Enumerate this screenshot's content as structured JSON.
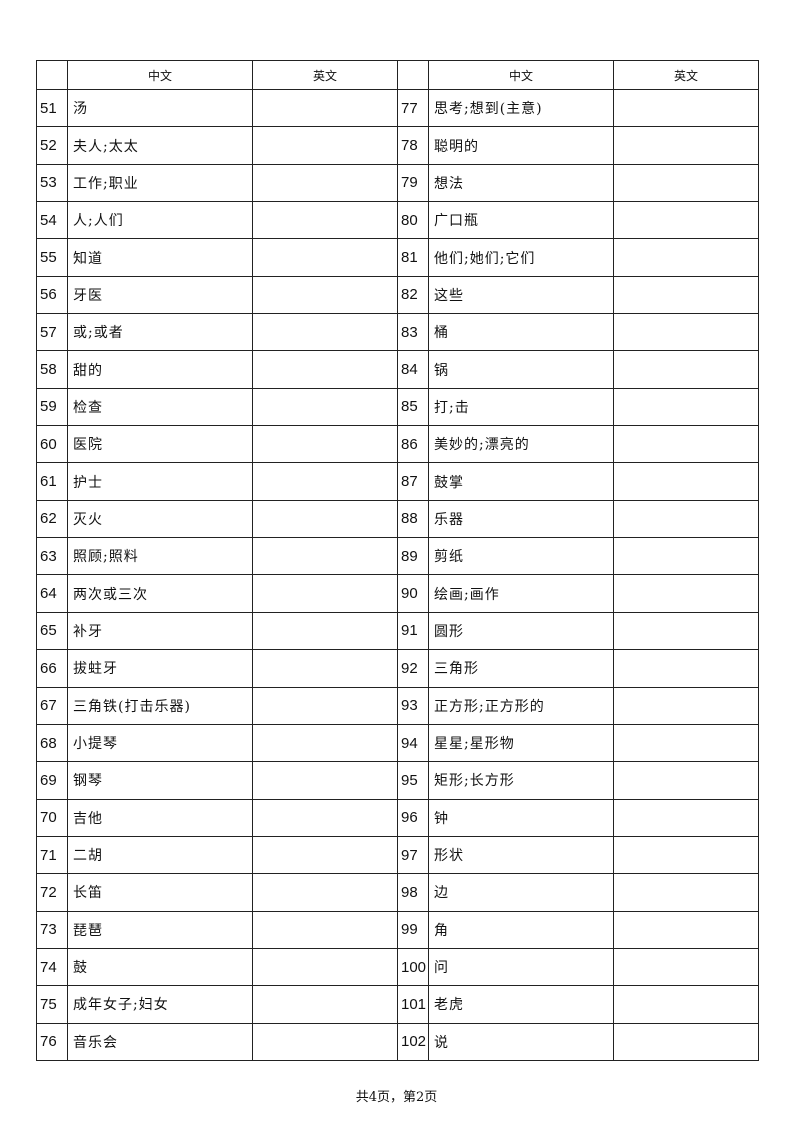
{
  "header": {
    "num": "",
    "zh": "中文",
    "en": "英文"
  },
  "left": [
    {
      "num": "51",
      "zh": "汤",
      "en": ""
    },
    {
      "num": "52",
      "zh": "夫人;太太",
      "en": ""
    },
    {
      "num": "53",
      "zh": "工作;职业",
      "en": ""
    },
    {
      "num": "54",
      "zh": "人;人们",
      "en": ""
    },
    {
      "num": "55",
      "zh": "知道",
      "en": ""
    },
    {
      "num": "56",
      "zh": "牙医",
      "en": ""
    },
    {
      "num": "57",
      "zh": "或;或者",
      "en": ""
    },
    {
      "num": "58",
      "zh": "甜的",
      "en": ""
    },
    {
      "num": "59",
      "zh": "检查",
      "en": ""
    },
    {
      "num": "60",
      "zh": "医院",
      "en": ""
    },
    {
      "num": "61",
      "zh": "护士",
      "en": ""
    },
    {
      "num": "62",
      "zh": "灭火",
      "en": ""
    },
    {
      "num": "63",
      "zh": "照顾;照料",
      "en": ""
    },
    {
      "num": "64",
      "zh": "两次或三次",
      "en": ""
    },
    {
      "num": "65",
      "zh": "补牙",
      "en": ""
    },
    {
      "num": "66",
      "zh": "拔蛀牙",
      "en": ""
    },
    {
      "num": "67",
      "zh": "三角铁(打击乐器)",
      "en": ""
    },
    {
      "num": "68",
      "zh": "小提琴",
      "en": ""
    },
    {
      "num": "69",
      "zh": "钢琴",
      "en": ""
    },
    {
      "num": "70",
      "zh": "吉他",
      "en": ""
    },
    {
      "num": "71",
      "zh": "二胡",
      "en": ""
    },
    {
      "num": "72",
      "zh": "长笛",
      "en": ""
    },
    {
      "num": "73",
      "zh": "琵琶",
      "en": ""
    },
    {
      "num": "74",
      "zh": "鼓",
      "en": ""
    },
    {
      "num": "75",
      "zh": "成年女子;妇女",
      "en": ""
    },
    {
      "num": "76",
      "zh": "音乐会",
      "en": ""
    }
  ],
  "right": [
    {
      "num": "77",
      "zh": "思考;想到(主意)",
      "en": ""
    },
    {
      "num": "78",
      "zh": "聪明的",
      "en": ""
    },
    {
      "num": "79",
      "zh": "想法",
      "en": ""
    },
    {
      "num": "80",
      "zh": "广口瓶",
      "en": ""
    },
    {
      "num": "81",
      "zh": "他们;她们;它们",
      "en": ""
    },
    {
      "num": "82",
      "zh": "这些",
      "en": ""
    },
    {
      "num": "83",
      "zh": "桶",
      "en": ""
    },
    {
      "num": "84",
      "zh": "锅",
      "en": ""
    },
    {
      "num": "85",
      "zh": "打;击",
      "en": ""
    },
    {
      "num": "86",
      "zh": "美妙的;漂亮的",
      "en": ""
    },
    {
      "num": "87",
      "zh": "鼓掌",
      "en": ""
    },
    {
      "num": "88",
      "zh": "乐器",
      "en": ""
    },
    {
      "num": "89",
      "zh": "剪纸",
      "en": ""
    },
    {
      "num": "90",
      "zh": "绘画;画作",
      "en": ""
    },
    {
      "num": "91",
      "zh": "圆形",
      "en": ""
    },
    {
      "num": "92",
      "zh": "三角形",
      "en": ""
    },
    {
      "num": "93",
      "zh": "正方形;正方形的",
      "en": ""
    },
    {
      "num": "94",
      "zh": "星星;星形物",
      "en": ""
    },
    {
      "num": "95",
      "zh": "矩形;长方形",
      "en": ""
    },
    {
      "num": "96",
      "zh": "钟",
      "en": ""
    },
    {
      "num": "97",
      "zh": "形状",
      "en": ""
    },
    {
      "num": "98",
      "zh": "边",
      "en": ""
    },
    {
      "num": "99",
      "zh": "角",
      "en": ""
    },
    {
      "num": "100",
      "zh": "问",
      "en": ""
    },
    {
      "num": "101",
      "zh": "老虎",
      "en": ""
    },
    {
      "num": "102",
      "zh": "说",
      "en": ""
    }
  ],
  "footer": "共4页，第2页"
}
